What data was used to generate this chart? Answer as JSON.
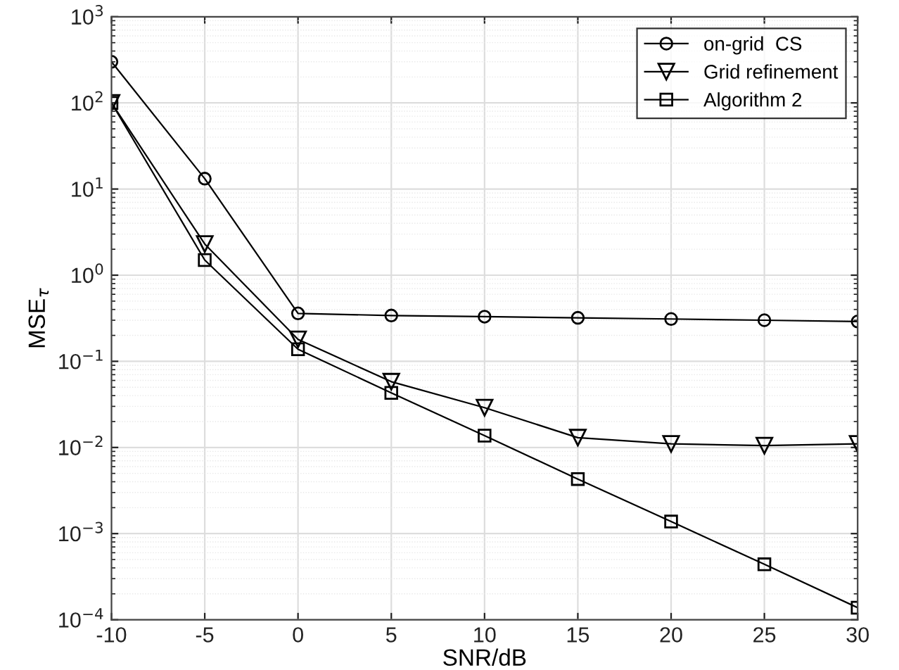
{
  "chart_data": {
    "type": "line",
    "xlabel": "SNR/dB",
    "ylabel": "MSE$_{τ}$",
    "x": [
      -10,
      -5,
      0,
      5,
      10,
      15,
      20,
      25,
      30
    ],
    "series": [
      {
        "name": "on-grid  CS",
        "color": "#000000",
        "marker": "circle",
        "values": [
          300,
          13.2,
          0.36,
          0.34,
          0.33,
          0.32,
          0.31,
          0.3,
          0.29
        ]
      },
      {
        "name": "Grid refinement",
        "color": "#000000",
        "marker": "triangle",
        "values": [
          100,
          2.3,
          0.18,
          0.058,
          0.029,
          0.013,
          0.011,
          0.0105,
          0.011
        ]
      },
      {
        "name": "Algorithm 2",
        "color": "#000000",
        "marker": "square",
        "values": [
          100,
          1.5,
          0.138,
          0.043,
          0.0137,
          0.0043,
          0.00138,
          0.00044,
          0.000138
        ]
      }
    ],
    "log": "y",
    "xlim": [
      -10,
      30
    ],
    "xticks": [
      -10,
      -5,
      0,
      5,
      10,
      15,
      20,
      25,
      30
    ],
    "ylim": [
      0.0001,
      1000
    ],
    "yticks": [
      {
        "value": 0.0001,
        "label": "10$^{−4}$"
      },
      {
        "value": 0.001,
        "label": "10$^{−3}$"
      },
      {
        "value": 0.01,
        "label": "10$^{−2}$"
      },
      {
        "value": 0.1,
        "label": "10$^{−1}$"
      },
      {
        "value": 1,
        "label": "10$^{0}$"
      },
      {
        "value": 10,
        "label": "10$^{1}$"
      },
      {
        "value": 100,
        "label": "10$^{2}$"
      },
      {
        "value": 1000,
        "label": "10$^{3}$"
      }
    ],
    "grid": true,
    "legend": "top right",
    "line_style": "solid"
  }
}
